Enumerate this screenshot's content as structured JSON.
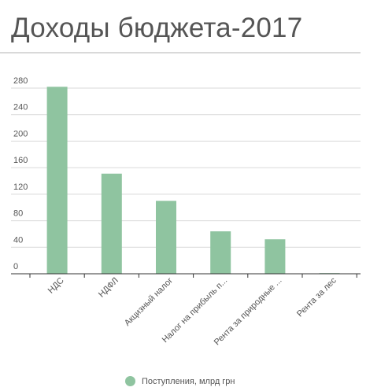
{
  "chart_title": "Доходы бюджета-2017",
  "chart_data": {
    "type": "bar",
    "title": "Доходы бюджета-2017",
    "categories": [
      "НДС",
      "НДФЛ",
      "Акцизный налог",
      "Налог на прибыль п...",
      "Рента за природные ...",
      "Рента за лес"
    ],
    "series": [
      {
        "name": "Поступления, млрд грн",
        "values": [
          282,
          151,
          110,
          64,
          52,
          1
        ]
      }
    ],
    "ylim": [
      0,
      280
    ],
    "yticks": [
      0,
      40,
      80,
      120,
      160,
      200,
      240,
      280
    ],
    "grid": true,
    "legend_position": "bottom",
    "colors": {
      "bar": "#8fc4a0",
      "grid": "#d9d9d9",
      "text": "#555555"
    }
  }
}
